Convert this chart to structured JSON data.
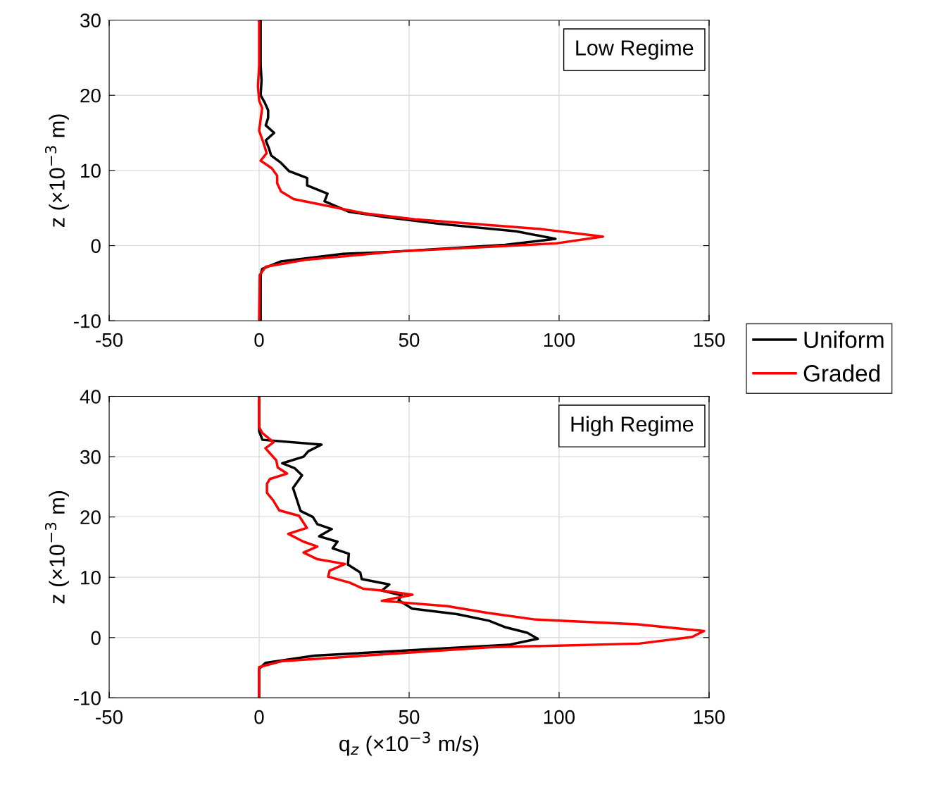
{
  "chart_data": [
    {
      "type": "line",
      "ylabel": "z (×10$^{−3}$ m)",
      "annotations": [
        "Low Regime"
      ],
      "xlim": [
        -50,
        150
      ],
      "xticks": [
        -50,
        0,
        50,
        100,
        150
      ],
      "ylim": [
        -10,
        30
      ],
      "yticks": [
        -10,
        0,
        10,
        20,
        30
      ],
      "grid": true,
      "legend": "right",
      "line_style": "solid",
      "marker": "none",
      "series": [
        {
          "name": "Uniform",
          "color": "#000000",
          "x": [
            0.5,
            0.5,
            1,
            7.3,
            28,
            45,
            82,
            98.8,
            85.7,
            60,
            42,
            30,
            21.8,
            22.8,
            16,
            16,
            10,
            7.3,
            4,
            3.3,
            2.2,
            5,
            2.2,
            3,
            3,
            1.9,
            0.5,
            0.8,
            0.5,
            0.5
          ],
          "values": [
            -10,
            -3.9,
            -3.1,
            -2.1,
            -1.1,
            -0.8,
            0.1,
            0.9,
            1.9,
            2.9,
            3.8,
            4.5,
            5.9,
            6.9,
            8,
            9,
            9.9,
            11,
            12,
            12.9,
            14,
            15,
            16,
            17,
            18,
            19,
            20,
            22,
            24,
            30
          ]
        },
        {
          "name": "Graded",
          "color": "#ff0000",
          "x": [
            0,
            0.2,
            2.2,
            15.3,
            45,
            99,
            114.6,
            94,
            52,
            35,
            11.5,
            7.3,
            6,
            6,
            4.2,
            0.5,
            2.5,
            1.5,
            0,
            1,
            0,
            -0.4,
            0,
            0
          ],
          "values": [
            -10,
            -3.9,
            -2.8,
            -1.9,
            -0.8,
            0.3,
            1.2,
            2.2,
            3.5,
            4.3,
            6.2,
            7.2,
            8.3,
            9.3,
            10.3,
            11.3,
            12.3,
            13.6,
            15.3,
            18.3,
            19.3,
            21.2,
            24,
            30
          ]
        }
      ]
    },
    {
      "type": "line",
      "xlabel": "q$_{z}$ (×10$^{−3}$ m/s)",
      "ylabel": "z (×10$^{−3}$ m)",
      "annotations": [
        "High Regime"
      ],
      "xlim": [
        -50,
        150
      ],
      "xticks": [
        -50,
        0,
        50,
        100,
        150
      ],
      "ylim": [
        -10,
        40
      ],
      "yticks": [
        -10,
        0,
        10,
        20,
        30,
        40
      ],
      "grid": true,
      "legend": false,
      "line_style": "solid",
      "marker": "none",
      "series": [
        {
          "color": "#000000",
          "x": [
            0,
            0,
            2.1,
            18.4,
            83.2,
            92.9,
            89.4,
            82.2,
            76.6,
            65.9,
            51,
            46.5,
            47.5,
            40.9,
            43.4,
            34.2,
            33.7,
            29.6,
            29.9,
            24.5,
            26.1,
            20,
            24.2,
            19.4,
            17.9,
            13.8,
            12.3,
            11.3,
            14.3,
            11.8,
            7.7,
            14.8,
            16.4,
            20.8,
            1.1,
            0,
            0
          ],
          "values": [
            -10,
            -5.2,
            -4.2,
            -3,
            -1.2,
            -0.2,
            0.8,
            1.7,
            2.8,
            3.9,
            4.8,
            6.2,
            7,
            7.8,
            8.8,
            9.7,
            10.8,
            12.1,
            13.9,
            14.8,
            15.9,
            16.8,
            18,
            18.8,
            20,
            21,
            23.3,
            24.8,
            26.9,
            28.1,
            28.9,
            30,
            30.9,
            32,
            32.8,
            34.2,
            40
          ]
        },
        {
          "color": "#ff0000",
          "x": [
            0,
            0,
            7.7,
            77.1,
            126.6,
            144.3,
            148.3,
            126.1,
            91.9,
            76.1,
            62.8,
            40.9,
            51.1,
            40.9,
            34.7,
            30.2,
            23,
            23.5,
            28.6,
            19.4,
            14.8,
            19.4,
            14.8,
            9.7,
            15.9,
            13.3,
            6.7,
            4.6,
            2.6,
            2.6,
            3.6,
            9.3,
            6.2,
            5.7,
            2.1,
            4.8,
            1.1,
            0,
            0
          ],
          "values": [
            -10,
            -4.9,
            -3.9,
            -1.6,
            -1,
            0.1,
            1.1,
            2.2,
            3,
            4.1,
            5.2,
            6.1,
            7.1,
            7.8,
            8.1,
            9.1,
            10.1,
            11.1,
            12.2,
            13,
            14.1,
            15.1,
            15.9,
            17.2,
            18.2,
            20.2,
            21.1,
            22.8,
            24,
            25.5,
            26.3,
            27.2,
            28.2,
            29.4,
            31.4,
            32.4,
            33.9,
            34.9,
            40
          ]
        }
      ]
    }
  ]
}
